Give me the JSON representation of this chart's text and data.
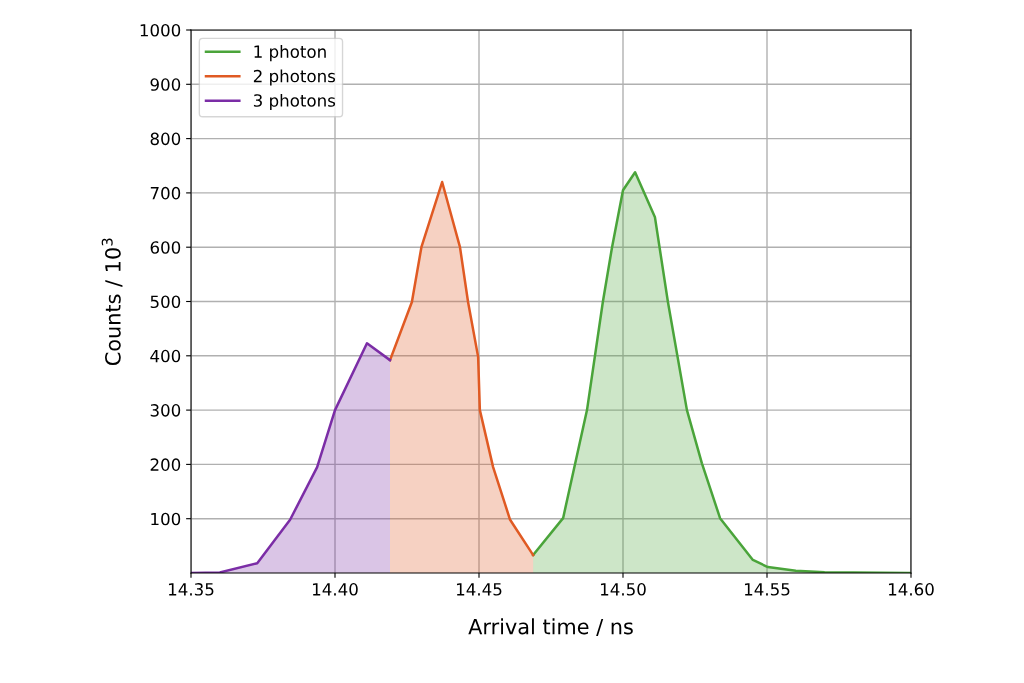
{
  "chart_data": {
    "type": "area",
    "xlabel": "Arrival time / ns",
    "ylabel": "Counts / 10$^{3}$",
    "xlim": [
      14.35,
      14.6
    ],
    "xticks": [
      {
        "value": 14.35,
        "label": "14.35"
      },
      {
        "value": 14.4,
        "label": "14.40"
      },
      {
        "value": 14.45,
        "label": "14.45"
      },
      {
        "value": 14.5,
        "label": "14.50"
      },
      {
        "value": 14.55,
        "label": "14.55"
      },
      {
        "value": 14.6,
        "label": "14.60"
      }
    ],
    "ylim": [
      0,
      1000
    ],
    "yticks": [
      100,
      200,
      300,
      400,
      500,
      600,
      700,
      800,
      900,
      1000
    ],
    "grid": true,
    "legend": "top left",
    "series": [
      {
        "name": "1 photon",
        "color": "#4aa43a",
        "x": [
          14.4688,
          14.4792,
          14.4875,
          14.493,
          14.4962,
          14.5,
          14.5042,
          14.5111,
          14.5156,
          14.5222,
          14.5274,
          14.5337,
          14.5451,
          14.5503,
          14.56,
          14.57,
          14.6
        ],
        "values": [
          33,
          101,
          300,
          499,
          600,
          705,
          738,
          655,
          499,
          300,
          202,
          101,
          24,
          11,
          4,
          1.5,
          0
        ]
      },
      {
        "name": "2 photons",
        "color": "#e05a23",
        "x": [
          14.4191,
          14.4267,
          14.43,
          14.4372,
          14.4434,
          14.4462,
          14.4497,
          14.4503,
          14.4549,
          14.4608,
          14.4688
        ],
        "values": [
          392,
          499,
          600,
          720,
          600,
          499,
          398,
          300,
          195,
          98,
          33
        ]
      },
      {
        "name": "3 photons",
        "color": "#7b2da6",
        "x": [
          14.35,
          14.36,
          14.373,
          14.3844,
          14.3938,
          14.4,
          14.4111,
          14.4191
        ],
        "values": [
          0,
          1,
          18,
          98,
          195,
          300,
          423,
          392
        ]
      }
    ]
  }
}
